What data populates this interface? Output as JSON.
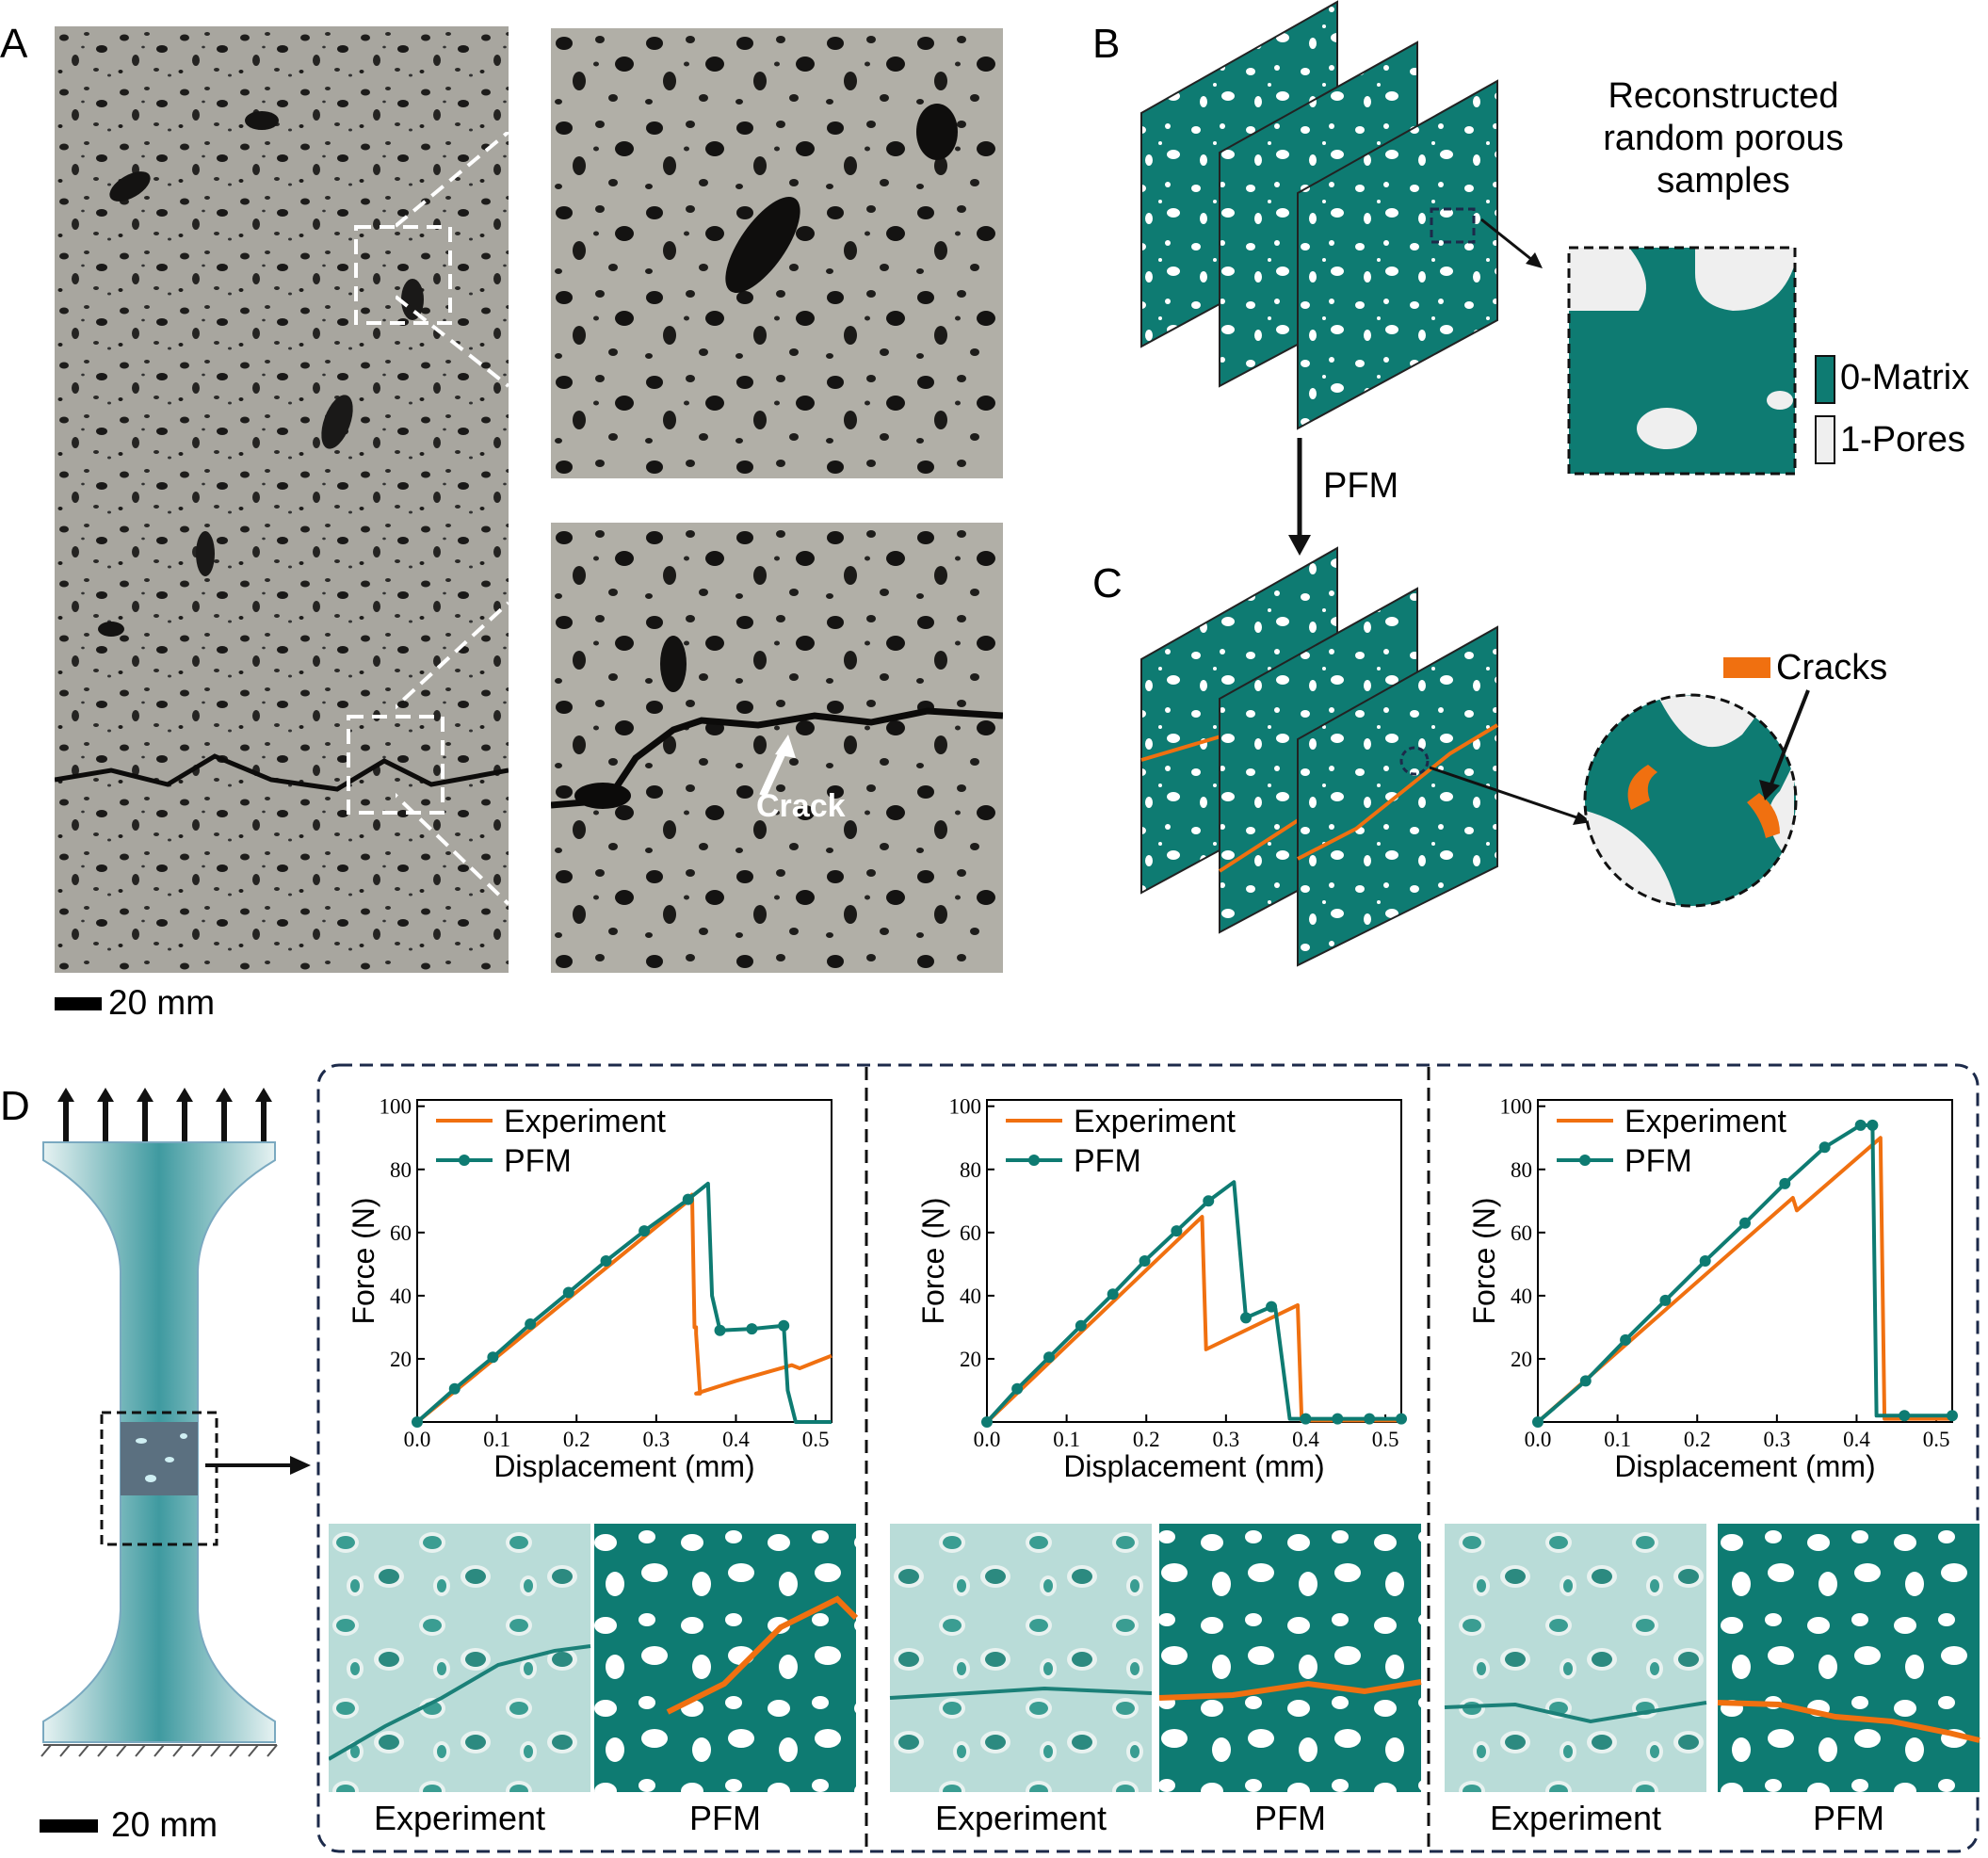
{
  "panels": {
    "a": "A",
    "b": "B",
    "c": "C",
    "d": "D"
  },
  "panel_a": {
    "scale_bar": "20 mm",
    "crack_label": "Crack"
  },
  "panel_b": {
    "title_lines": [
      "Reconstructed",
      "random porous",
      "samples"
    ],
    "legend": [
      {
        "label": "0-Matrix",
        "color": "#0e7b72"
      },
      {
        "label": "1-Pores",
        "color": "#efefef"
      }
    ],
    "arrow_label": "PFM"
  },
  "panel_c": {
    "crack_label": "Cracks",
    "crack_color": "#f07010"
  },
  "panel_d": {
    "scale_bar": "20 mm",
    "image_labels": [
      [
        "Experiment",
        "PFM"
      ],
      [
        "Experiment",
        "PFM"
      ],
      [
        "Experiment",
        "PFM"
      ]
    ]
  },
  "colors": {
    "matrix": "#0e7b72",
    "crack": "#f07010",
    "frame": "#1c2a4a"
  },
  "chart_data": [
    {
      "type": "line",
      "xlabel": "Displacement (mm)",
      "ylabel": "Force (N)",
      "xlim": [
        0,
        0.52
      ],
      "ylim": [
        0,
        102
      ],
      "xticks": [
        "0.0",
        "0.1",
        "0.2",
        "0.3",
        "0.4",
        "0.5"
      ],
      "yticks": [
        "20",
        "40",
        "60",
        "80",
        "100"
      ],
      "legend_position": "top-left",
      "series": [
        {
          "name": "Experiment",
          "color": "#f07010",
          "x": [
            0,
            0.34,
            0.345,
            0.348,
            0.35,
            0.35,
            0.355,
            0.35,
            0.4,
            0.47,
            0.48,
            0.5,
            0.52
          ],
          "y": [
            0,
            70,
            72,
            30,
            30,
            28,
            9,
            9,
            13,
            18,
            17,
            19,
            21
          ]
        },
        {
          "name": "PFM",
          "color": "#0e7b72",
          "x": [
            0,
            0.047,
            0.095,
            0.142,
            0.19,
            0.237,
            0.285,
            0.34,
            0.365,
            0.37,
            0.38,
            0.42,
            0.46,
            0.465,
            0.475,
            0.5,
            0.52
          ],
          "y": [
            0,
            10.5,
            20.5,
            31,
            41,
            51,
            60.5,
            70.5,
            75.5,
            40,
            29,
            29.5,
            30.5,
            10,
            0,
            0,
            0
          ],
          "markers": [
            0,
            0.047,
            0.095,
            0.142,
            0.19,
            0.237,
            0.285,
            0.34,
            0.38,
            0.42,
            0.46
          ]
        }
      ]
    },
    {
      "type": "line",
      "xlabel": "Displacement (mm)",
      "ylabel": "Force (N)",
      "xlim": [
        0,
        0.52
      ],
      "ylim": [
        0,
        102
      ],
      "xticks": [
        "0.0",
        "0.1",
        "0.2",
        "0.3",
        "0.4",
        "0.5"
      ],
      "yticks": [
        "20",
        "40",
        "60",
        "80",
        "100"
      ],
      "legend_position": "top-left",
      "series": [
        {
          "name": "Experiment",
          "color": "#f07010",
          "x": [
            0,
            0.27,
            0.275,
            0.39,
            0.395,
            0.4,
            0.52
          ],
          "y": [
            0,
            65,
            23,
            37,
            0.5,
            0.5,
            0.5
          ]
        },
        {
          "name": "PFM",
          "color": "#0e7b72",
          "x": [
            0,
            0.038,
            0.078,
            0.118,
            0.158,
            0.198,
            0.238,
            0.278,
            0.31,
            0.325,
            0.357,
            0.362,
            0.38,
            0.4,
            0.44,
            0.48,
            0.52
          ],
          "y": [
            0,
            10.5,
            20.5,
            30.5,
            40.5,
            51,
            60.5,
            70,
            76,
            33,
            36.5,
            36,
            1,
            1,
            1,
            1,
            1
          ],
          "markers": [
            0,
            0.038,
            0.078,
            0.118,
            0.158,
            0.198,
            0.238,
            0.278,
            0.325,
            0.357,
            0.4,
            0.44,
            0.48,
            0.52
          ]
        }
      ]
    },
    {
      "type": "line",
      "xlabel": "Displacement (mm)",
      "ylabel": "Force (N)",
      "xlim": [
        0,
        0.52
      ],
      "ylim": [
        0,
        102
      ],
      "xticks": [
        "0.0",
        "0.1",
        "0.2",
        "0.3",
        "0.4",
        "0.5"
      ],
      "yticks": [
        "20",
        "40",
        "60",
        "80",
        "100"
      ],
      "legend_position": "top-left",
      "series": [
        {
          "name": "Experiment",
          "color": "#f07010",
          "x": [
            0,
            0.32,
            0.325,
            0.43,
            0.435,
            0.52
          ],
          "y": [
            0,
            71,
            67,
            90,
            1,
            1
          ]
        },
        {
          "name": "PFM",
          "color": "#0e7b72",
          "x": [
            0,
            0.06,
            0.11,
            0.16,
            0.21,
            0.26,
            0.31,
            0.36,
            0.405,
            0.42,
            0.425,
            0.43,
            0.47,
            0.52
          ],
          "y": [
            0,
            13,
            26,
            38.5,
            51,
            63,
            75.5,
            87,
            94,
            94,
            2,
            2,
            2,
            2
          ],
          "markers": [
            0,
            0.06,
            0.11,
            0.16,
            0.21,
            0.26,
            0.31,
            0.36,
            0.405,
            0.42,
            0.46,
            0.52
          ]
        }
      ]
    }
  ]
}
